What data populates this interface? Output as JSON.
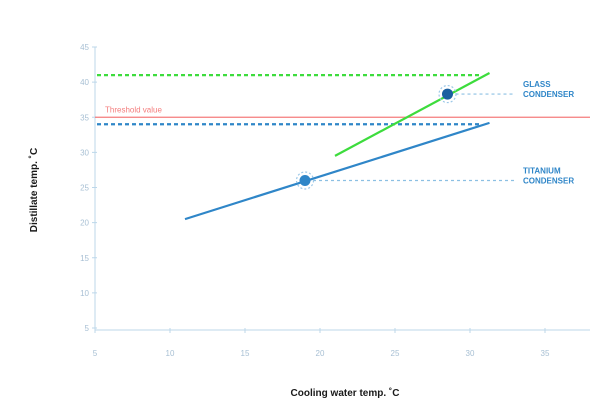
{
  "chart_data": {
    "type": "line",
    "xlabel": "Cooling water temp. ˚C",
    "ylabel": "Distillate temp. ˚C",
    "xlim": [
      5,
      38
    ],
    "ylim": [
      5,
      45
    ],
    "xticks": [
      "5",
      "10",
      "15",
      "20",
      "25",
      "30",
      "35"
    ],
    "yticks": [
      "5",
      "10",
      "15",
      "20",
      "25",
      "30",
      "35",
      "40",
      "45"
    ],
    "threshold": {
      "label": "Threshold value",
      "value": 35,
      "color": "#f47c7c"
    },
    "series": [
      {
        "name": "TITANIUM",
        "label_line2": "CONDENSER",
        "color": "#2f86c8",
        "x": [
          11,
          31.3
        ],
        "y": [
          20.5,
          34.2
        ],
        "operating_point": {
          "x": 19,
          "y": 26
        },
        "reference_level": 34
      },
      {
        "name": "GLASS",
        "label_line2": "CONDENSER",
        "color": "#3ddc3d",
        "x": [
          21,
          31.3
        ],
        "y": [
          29.5,
          41.3
        ],
        "operating_point": {
          "x": 28.5,
          "y": 38.3
        },
        "reference_level": 41,
        "line_color": "#3ddc3d",
        "marker_color": "#1a5fa0"
      }
    ]
  }
}
